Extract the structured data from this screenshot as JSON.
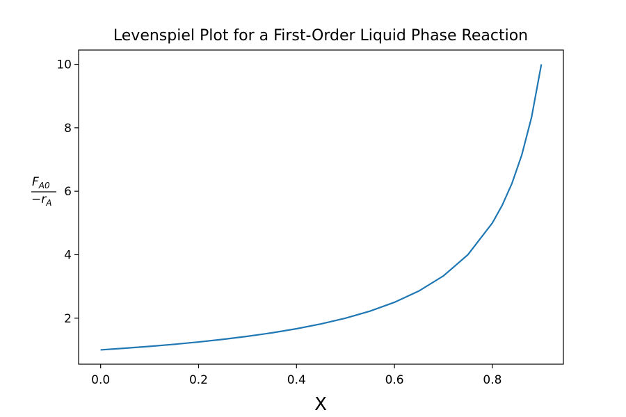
{
  "chart_data": {
    "type": "line",
    "title": "Levenspiel Plot for a First-Order Liquid Phase Reaction",
    "xlabel": "X",
    "ylabel": {
      "numerator_main": "F",
      "numerator_sub": "A0",
      "denominator_main": "−r",
      "denominator_sub": "A"
    },
    "xlim": [
      -0.045,
      0.945
    ],
    "ylim": [
      0.55,
      10.45
    ],
    "x_ticks": [
      0.0,
      0.2,
      0.4,
      0.6,
      0.8
    ],
    "x_tick_labels": [
      "0.0",
      "0.2",
      "0.4",
      "0.6",
      "0.8"
    ],
    "y_ticks": [
      2,
      4,
      6,
      8,
      10
    ],
    "y_tick_labels": [
      "2",
      "4",
      "6",
      "8",
      "10"
    ],
    "grid": false,
    "series": [
      {
        "line_color": "#1f77b4",
        "x": [
          0.0,
          0.05,
          0.1,
          0.15,
          0.2,
          0.25,
          0.3,
          0.35,
          0.4,
          0.45,
          0.5,
          0.55,
          0.6,
          0.65,
          0.7,
          0.75,
          0.8,
          0.82,
          0.84,
          0.86,
          0.88,
          0.9
        ],
        "y": [
          1.0,
          1.053,
          1.111,
          1.176,
          1.25,
          1.333,
          1.429,
          1.538,
          1.667,
          1.818,
          2.0,
          2.222,
          2.5,
          2.857,
          3.333,
          4.0,
          5.0,
          5.556,
          6.25,
          7.143,
          8.333,
          10.0
        ]
      }
    ]
  }
}
